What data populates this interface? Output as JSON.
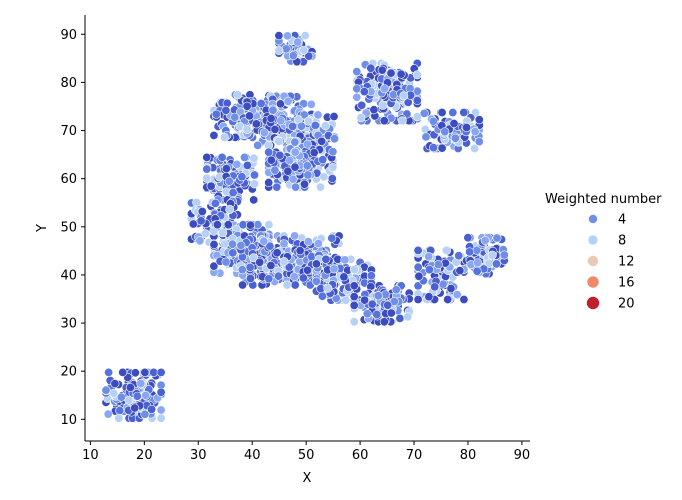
{
  "chart_data": {
    "type": "scatter",
    "title": "",
    "xlabel": "X",
    "ylabel": "Y",
    "xlim": [
      9,
      91.5
    ],
    "ylim": [
      5.5,
      94
    ],
    "xticks": [
      10,
      20,
      30,
      40,
      50,
      60,
      70,
      80,
      90
    ],
    "yticks": [
      10,
      20,
      30,
      40,
      50,
      60,
      70,
      80,
      90
    ],
    "grid": false,
    "legend": {
      "title": "Weighted number",
      "placement": "right",
      "entries": [
        {
          "label": "4",
          "color": "#6f8ee8"
        },
        {
          "label": "8",
          "color": "#b7d0f8"
        },
        {
          "label": "12",
          "color": "#ecc8b4"
        },
        {
          "label": "16",
          "color": "#f0896a"
        },
        {
          "label": "20",
          "color": "#c11f2d"
        }
      ]
    },
    "clusters": [
      {
        "x": 18,
        "y": 15,
        "sx": 3.0,
        "sy": 2.8,
        "n": 140
      },
      {
        "x": 48,
        "y": 87,
        "sx": 1.8,
        "sy": 1.6,
        "n": 45
      },
      {
        "x": 38,
        "y": 73,
        "sx": 3.0,
        "sy": 2.6,
        "n": 130
      },
      {
        "x": 45,
        "y": 72,
        "sx": 3.5,
        "sy": 3.0,
        "n": 140
      },
      {
        "x": 51,
        "y": 69,
        "sx": 2.5,
        "sy": 2.5,
        "n": 80
      },
      {
        "x": 65,
        "y": 78,
        "sx": 3.3,
        "sy": 3.5,
        "n": 160
      },
      {
        "x": 77,
        "y": 70,
        "sx": 3.0,
        "sy": 2.2,
        "n": 90
      },
      {
        "x": 36,
        "y": 60,
        "sx": 2.6,
        "sy": 2.6,
        "n": 110
      },
      {
        "x": 49,
        "y": 63,
        "sx": 3.5,
        "sy": 2.8,
        "n": 150
      },
      {
        "x": 33,
        "y": 51,
        "sx": 2.5,
        "sy": 2.5,
        "n": 80
      },
      {
        "x": 38,
        "y": 45,
        "sx": 3.0,
        "sy": 3.2,
        "n": 160
      },
      {
        "x": 43,
        "y": 43,
        "sx": 3.0,
        "sy": 3.0,
        "n": 130
      },
      {
        "x": 51,
        "y": 43,
        "sx": 3.0,
        "sy": 3.0,
        "n": 150
      },
      {
        "x": 57,
        "y": 39,
        "sx": 3.0,
        "sy": 2.5,
        "n": 110
      },
      {
        "x": 64,
        "y": 34,
        "sx": 3.0,
        "sy": 2.2,
        "n": 110
      },
      {
        "x": 75,
        "y": 40,
        "sx": 2.5,
        "sy": 3.0,
        "n": 100
      },
      {
        "x": 83,
        "y": 44,
        "sx": 2.2,
        "sy": 2.2,
        "n": 80
      }
    ]
  }
}
